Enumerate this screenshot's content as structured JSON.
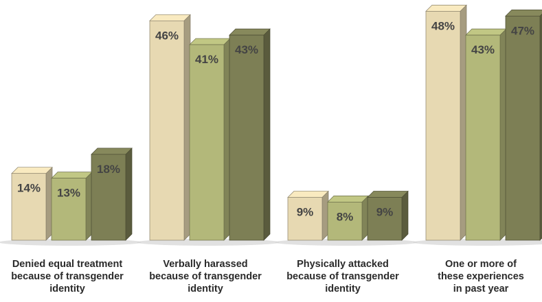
{
  "chart_data": {
    "type": "bar",
    "categories": [
      "Denied equal treatment\nbecause of transgender\nidentity",
      "Verbally harassed\nbecause of transgender\nidentity",
      "Physically attacked\nbecause of transgender\nidentity",
      "One or more of\nthese experiences\nin past year"
    ],
    "series": [
      {
        "values": [
          14,
          46,
          9,
          48
        ],
        "labels": [
          "14%",
          "46%",
          "9%",
          "48%"
        ],
        "color": "#e7d9b2"
      },
      {
        "values": [
          13,
          41,
          8,
          43
        ],
        "labels": [
          "13%",
          "41%",
          "8%",
          "43%"
        ],
        "color": "#b3b87a"
      },
      {
        "values": [
          18,
          43,
          9,
          47
        ],
        "labels": [
          "18%",
          "43%",
          "9%",
          "47%"
        ],
        "color": "#7d7f55"
      }
    ],
    "title": "",
    "xlabel": "",
    "ylabel": "",
    "ylim": [
      0,
      50
    ],
    "grid": false,
    "legend": "none"
  }
}
